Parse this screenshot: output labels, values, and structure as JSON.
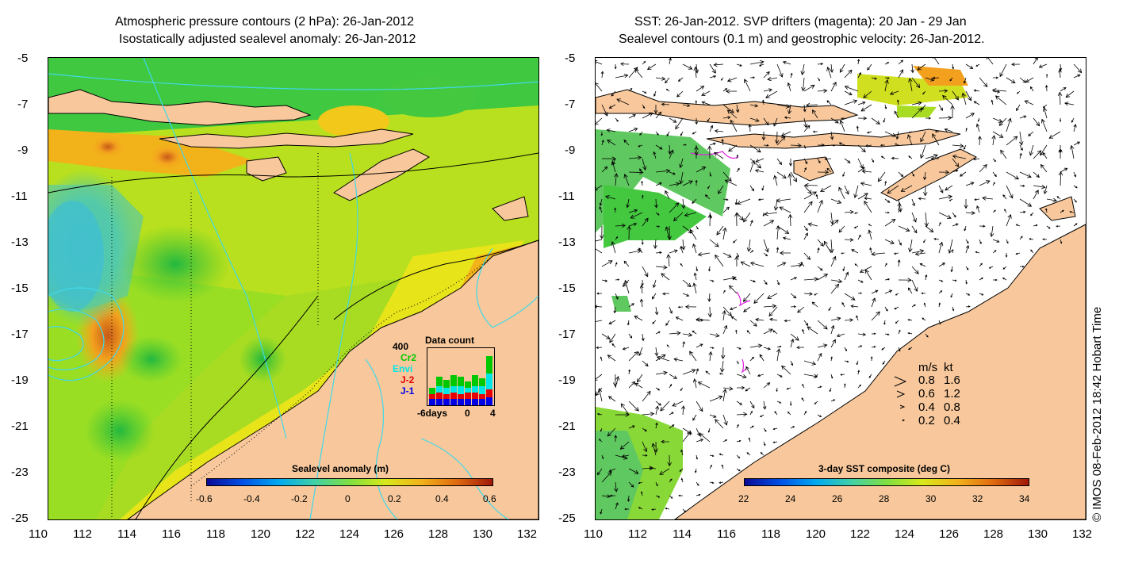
{
  "left_panel": {
    "title_line1": "Atmospheric pressure contours (2 hPa): 26-Jan-2012",
    "title_line2": "Isostatically adjusted sealevel anomaly: 26-Jan-2012",
    "colorbar": {
      "title": "Sealevel anomaly (m)",
      "labels": [
        "-0.6",
        "-0.4",
        "-0.2",
        "0",
        "0.2",
        "0.4",
        "0.6"
      ]
    },
    "data_count": {
      "title": "Data count",
      "ymax_label": "400",
      "legend": [
        {
          "label": "Cr2",
          "color": "#00c800"
        },
        {
          "label": "Envi",
          "color": "#00e6e6"
        },
        {
          "label": "J-2",
          "color": "#e60000"
        },
        {
          "label": "J-1",
          "color": "#0000e6"
        }
      ],
      "x_labels": [
        "-6days",
        "0",
        "4"
      ]
    }
  },
  "right_panel": {
    "title_line1": "SST: 26-Jan-2012. SVP drifters (magenta): 20 Jan - 29 Jan",
    "title_line2": "Sealevel contours (0.1 m) and geostrophic velocity: 26-Jan-2012.",
    "colorbar": {
      "title": "3-day SST composite (deg C)",
      "labels": [
        "22",
        "24",
        "26",
        "28",
        "30",
        "32",
        "34"
      ]
    },
    "velocity_key": {
      "header_ms": "m/s",
      "header_kt": "kt",
      "rows": [
        {
          "ms": "0.8",
          "kt": "1.6"
        },
        {
          "ms": "0.6",
          "kt": "1.2"
        },
        {
          "ms": "0.4",
          "kt": "0.8"
        },
        {
          "ms": "0.2",
          "kt": "0.4"
        }
      ]
    }
  },
  "axes": {
    "lat_labels": [
      "-5",
      "-7",
      "-9",
      "-11",
      "-13",
      "-15",
      "-17",
      "-19",
      "-21",
      "-23",
      "-25"
    ],
    "lon_labels": [
      "110",
      "112",
      "114",
      "116",
      "118",
      "120",
      "122",
      "124",
      "126",
      "128",
      "130",
      "132"
    ]
  },
  "credit": "© IMOS 08-Feb-2012 18:42 Hobart Time",
  "colors": {
    "land": "#f8c89c",
    "anomaly_green": "#88dc22",
    "anomaly_yellow": "#d8e81a",
    "anomaly_orange": "#f2b21a",
    "anomaly_cyan": "#40c0e0",
    "contour_cyan": "#40d8e8"
  }
}
